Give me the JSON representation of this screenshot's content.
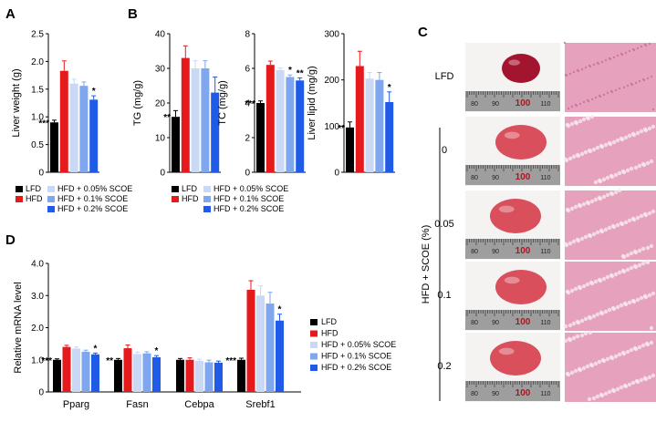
{
  "figure": {
    "panel_letters": {
      "A": "A",
      "B": "B",
      "C": "C",
      "D": "D"
    },
    "groups": [
      "LFD",
      "HFD",
      "HFD + 0.05% SCOE",
      "HFD + 0.1% SCOE",
      "HFD + 0.2% SCOE"
    ],
    "colors": {
      "LFD": "#000000",
      "HFD": "#e41a1c",
      "HFD + 0.05% SCOE": "#c9d8f5",
      "HFD + 0.1% SCOE": "#7ea7ef",
      "HFD + 0.2% SCOE": "#1f5be6"
    },
    "photos": {
      "rows": [
        "LFD",
        "0",
        "0.05",
        "0.1",
        "0.2"
      ],
      "group_label": "HFD + SCOE (%)",
      "ruler_numbers": [
        "80",
        "90",
        "100",
        "110"
      ],
      "liver_color": "#a3142e",
      "tissue_color": "#e6a2bd"
    }
  },
  "chart_data": [
    {
      "id": "liver-weight",
      "type": "bar",
      "ylabel": "Liver weight (g)",
      "ylim": [
        0,
        2.5
      ],
      "yticks": [
        "0",
        "0.5",
        "1.0",
        "1.5",
        "2.0",
        "2.5"
      ],
      "values": [
        0.9,
        1.83,
        1.6,
        1.56,
        1.31
      ],
      "errors": [
        0.04,
        0.18,
        0.08,
        0.07,
        0.07
      ],
      "annotations": [
        "***",
        "",
        "",
        "",
        "*"
      ]
    },
    {
      "id": "tg",
      "type": "bar",
      "ylabel": "TG (mg/g)",
      "ylim": [
        0,
        40
      ],
      "yticks": [
        "0",
        "10",
        "20",
        "30",
        "40"
      ],
      "values": [
        16,
        33,
        30,
        30,
        23
      ],
      "errors": [
        1.8,
        3.5,
        2.2,
        2.2,
        4.5
      ],
      "annotations": [
        "**",
        "",
        "",
        "",
        ""
      ]
    },
    {
      "id": "tc",
      "type": "bar",
      "ylabel": "TC (mg/g)",
      "ylim": [
        0,
        8
      ],
      "yticks": [
        "0",
        "2",
        "4",
        "6",
        "8"
      ],
      "values": [
        4.0,
        6.2,
        5.9,
        5.5,
        5.3
      ],
      "errors": [
        0.12,
        0.22,
        0.12,
        0.12,
        0.15
      ],
      "annotations": [
        "***",
        "",
        "",
        "*",
        "**"
      ]
    },
    {
      "id": "liver-lipid",
      "type": "bar",
      "ylabel": "Liver lipid (mg/g)",
      "ylim": [
        0,
        300
      ],
      "yticks": [
        "0",
        "100",
        "200",
        "300"
      ],
      "values": [
        97,
        230,
        203,
        200,
        152
      ],
      "errors": [
        12,
        32,
        13,
        16,
        22
      ],
      "annotations": [
        "**",
        "",
        "",
        "",
        "*"
      ]
    },
    {
      "id": "mrna",
      "type": "bar",
      "ylabel": "Relative mRNA level",
      "ylim": [
        0,
        4.0
      ],
      "yticks": [
        "0",
        "1.0",
        "2.0",
        "3.0",
        "4.0"
      ],
      "categories": [
        "Pparg",
        "Fasn",
        "Cebpa",
        "Srebf1"
      ],
      "series": [
        {
          "name": "LFD",
          "values": [
            1.0,
            1.0,
            1.0,
            1.0
          ],
          "errors": [
            0.03,
            0.04,
            0.04,
            0.05
          ]
        },
        {
          "name": "HFD",
          "values": [
            1.4,
            1.36,
            1.0,
            3.18
          ],
          "errors": [
            0.05,
            0.1,
            0.06,
            0.28
          ]
        },
        {
          "name": "HFD + 0.05% SCOE",
          "values": [
            1.35,
            1.18,
            0.97,
            3.0
          ],
          "errors": [
            0.05,
            0.06,
            0.05,
            0.3
          ]
        },
        {
          "name": "HFD + 0.1% SCOE",
          "values": [
            1.25,
            1.2,
            0.92,
            2.75
          ],
          "errors": [
            0.05,
            0.05,
            0.07,
            0.35
          ]
        },
        {
          "name": "HFD + 0.2% SCOE",
          "values": [
            1.17,
            1.08,
            0.91,
            2.22
          ],
          "errors": [
            0.04,
            0.05,
            0.05,
            0.2
          ]
        }
      ],
      "annotations": [
        [
          "***",
          "",
          "",
          "",
          "*"
        ],
        [
          "**",
          "",
          "",
          "",
          "*"
        ],
        [
          "",
          "",
          "",
          "",
          ""
        ],
        [
          "***",
          "",
          "",
          "",
          "*"
        ]
      ]
    }
  ]
}
